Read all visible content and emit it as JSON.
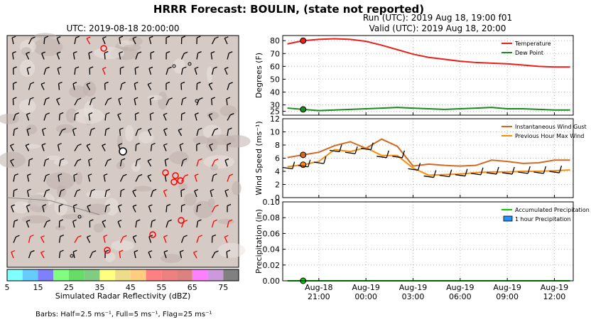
{
  "header": {
    "main_title": "HRRR Forecast: BOULIN, (state not reported)",
    "run_line": "Run (UTC): 2019 Aug 18, 19:00 f01",
    "valid_line": "Valid (UTC): 2019 Aug 18, 20:00"
  },
  "map": {
    "title": "UTC: 2019-08-18 20:00:00",
    "colorbar": {
      "label": "Simulated Radar Reflectivity (dBZ)",
      "ticks": [
        "5",
        "15",
        "25",
        "35",
        "45",
        "55",
        "65",
        "75"
      ],
      "colors": [
        "#80ffff",
        "#66ccff",
        "#8080ff",
        "#80ff80",
        "#66dd66",
        "#80cc80",
        "#ffff80",
        "#eedd88",
        "#ffcc80",
        "#ff8080",
        "#ee8080",
        "#dd8080",
        "#ff80ff",
        "#cc99dd",
        "#808080"
      ]
    },
    "barb_note": "Barbs: Half=2.5 ms⁻¹, Full=5 ms⁻¹, Flag=25 ms⁻¹"
  },
  "chart_data": [
    {
      "type": "line",
      "ylabel": "Degrees (F)",
      "ylim": [
        22,
        84
      ],
      "yticks": [
        "25",
        "30",
        "40",
        "50",
        "60",
        "70",
        "80"
      ],
      "grid": true,
      "legend_position": "top-right",
      "x": [
        19,
        20,
        21,
        22,
        23,
        24,
        25,
        26,
        27,
        28,
        29,
        30,
        31,
        32,
        33,
        34,
        35,
        36,
        37
      ],
      "series": [
        {
          "name": "Temperature",
          "color": "#e8211b",
          "values": [
            77.5,
            80,
            81,
            81.5,
            81,
            79.5,
            76.5,
            73,
            69.5,
            67,
            65.5,
            64,
            63,
            62.5,
            62,
            61,
            60,
            59.5,
            59.5
          ]
        },
        {
          "name": "Dew Point",
          "color": "#1a8a1a",
          "values": [
            27.5,
            26.5,
            25.5,
            26,
            26.5,
            27,
            27.5,
            28,
            27.5,
            27,
            26.5,
            27,
            27.5,
            28,
            27,
            27,
            26.5,
            26,
            26
          ]
        }
      ],
      "marker_x": 20
    },
    {
      "type": "line",
      "ylabel": "Wind Speed (ms⁻¹)",
      "ylim": [
        0,
        12
      ],
      "yticks": [
        "0",
        "2",
        "4",
        "6",
        "8",
        "10",
        "12"
      ],
      "grid": true,
      "legend_position": "top-right",
      "x": [
        19,
        20,
        21,
        22,
        23,
        24,
        25,
        26,
        27,
        28,
        29,
        30,
        31,
        32,
        33,
        34,
        35,
        36,
        37
      ],
      "series": [
        {
          "name": "Instantaneous Wind Gust",
          "color": "#d2691e",
          "values": [
            6.1,
            6.5,
            6.9,
            7.9,
            8.5,
            7.5,
            8.9,
            7.8,
            4.8,
            5.1,
            4.9,
            4.8,
            4.9,
            5.7,
            5.5,
            5.2,
            5.3,
            5.7,
            5.7
          ]
        },
        {
          "name": "Previous Hour Max Wind",
          "color": "#ff8c00",
          "values": [
            4.7,
            5.0,
            5.5,
            7.3,
            7.0,
            7.6,
            6.4,
            6.4,
            4.5,
            3.4,
            3.5,
            3.6,
            3.8,
            3.9,
            3.9,
            4.0,
            4.0,
            4.1,
            4.2
          ]
        }
      ],
      "marker_x": 20
    },
    {
      "type": "bar",
      "ylabel": "Precipitation (in)",
      "ylim": [
        0,
        0.1
      ],
      "yticks": [
        "0.00",
        "0.02",
        "0.04",
        "0.06",
        "0.08",
        "0.10"
      ],
      "grid": true,
      "legend_position": "top-right",
      "x": [
        19,
        20,
        21,
        22,
        23,
        24,
        25,
        26,
        27,
        28,
        29,
        30,
        31,
        32,
        33,
        34,
        35,
        36,
        37
      ],
      "series": [
        {
          "name": "Accumulated Precipitation",
          "color": "#00cc00",
          "values": [
            0,
            0,
            0,
            0,
            0,
            0,
            0,
            0,
            0,
            0,
            0,
            0,
            0,
            0,
            0,
            0,
            0,
            0,
            0
          ]
        },
        {
          "name": "1 hour Precipitation",
          "color": "#1e90ff",
          "values": [
            0,
            0,
            0,
            0,
            0,
            0,
            0,
            0,
            0,
            0,
            0,
            0,
            0,
            0,
            0,
            0,
            0,
            0,
            0
          ]
        }
      ],
      "marker_x": 20,
      "xticks": [
        {
          "x": 21,
          "line1": "Aug-18",
          "line2": "21:00"
        },
        {
          "x": 24,
          "line1": "Aug-19",
          "line2": "00:00"
        },
        {
          "x": 27,
          "line1": "Aug-19",
          "line2": "03:00"
        },
        {
          "x": 30,
          "line1": "Aug-19",
          "line2": "06:00"
        },
        {
          "x": 33,
          "line1": "Aug-19",
          "line2": "09:00"
        },
        {
          "x": 36,
          "line1": "Aug-19",
          "line2": "12:00"
        }
      ]
    }
  ]
}
